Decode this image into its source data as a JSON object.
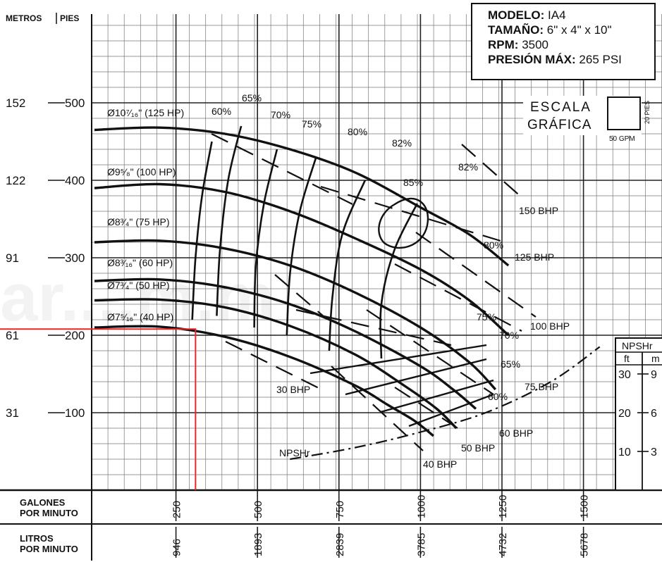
{
  "chart_data": {
    "type": "line",
    "title": "",
    "info": {
      "model_label": "MODELO:",
      "model": "IA4",
      "size_label": "TAMAÑO:",
      "size": "6\" x 4\" x 10\"",
      "rpm_label": "RPM:",
      "rpm": "3500",
      "pressure_label": "PRESIÓN MÁX:",
      "pressure": "265 PSI"
    },
    "y_axis": {
      "meters_label": "METROS",
      "feet_label": "PIES",
      "ticks": [
        {
          "feet": 100,
          "meters": "31",
          "label": "100"
        },
        {
          "feet": 200,
          "meters": "61",
          "label": "200"
        },
        {
          "feet": 300,
          "meters": "91",
          "label": "300"
        },
        {
          "feet": 400,
          "meters": "122",
          "label": "400"
        },
        {
          "feet": 500,
          "meters": "152",
          "label": "500"
        }
      ],
      "ylim": [
        0,
        600
      ]
    },
    "x_axis": {
      "gpm_label": [
        "GALONES",
        "POR MINUTO"
      ],
      "lpm_label": [
        "LITROS",
        "POR MINUTO"
      ],
      "ticks": [
        {
          "gpm": 250,
          "gpm_label": "250",
          "lpm": "946"
        },
        {
          "gpm": 500,
          "gpm_label": "500",
          "lpm": "1893"
        },
        {
          "gpm": 750,
          "gpm_label": "750",
          "lpm": "2839"
        },
        {
          "gpm": 1000,
          "gpm_label": "1000",
          "lpm": "3785"
        },
        {
          "gpm": 1250,
          "gpm_label": "1250",
          "lpm": "4732"
        },
        {
          "gpm": 1500,
          "gpm_label": "1500",
          "lpm": "5678"
        }
      ],
      "xlim": [
        0,
        1750
      ]
    },
    "scale_box": {
      "title": [
        "ESCALA",
        "GRÁFICA"
      ],
      "width_label": "50 GPM",
      "height_label": "20 PIES"
    },
    "npsh_axis": {
      "title": "NPSHr",
      "ft_label": "ft",
      "m_label": "m",
      "ticks": [
        {
          "ft": "10",
          "m": "3",
          "feet": 50
        },
        {
          "ft": "20",
          "m": "6",
          "feet": 100
        },
        {
          "ft": "30",
          "m": "9",
          "feet": 150
        }
      ]
    },
    "impeller_curves": [
      {
        "label": "Ø10⁷⁄₁₆\" (125 HP)",
        "points": [
          [
            0,
            465
          ],
          [
            200,
            468
          ],
          [
            400,
            460
          ],
          [
            600,
            440
          ],
          [
            800,
            410
          ],
          [
            1000,
            365
          ],
          [
            1150,
            330
          ],
          [
            1270,
            290
          ]
        ]
      },
      {
        "label": "Ø9⁵⁄₈\" (100 HP)",
        "points": [
          [
            0,
            390
          ],
          [
            200,
            395
          ],
          [
            400,
            385
          ],
          [
            600,
            360
          ],
          [
            800,
            325
          ],
          [
            1000,
            285
          ],
          [
            1150,
            245
          ],
          [
            1270,
            200
          ]
        ]
      },
      {
        "label": "Ø8³⁄₄\" (75 HP)",
        "points": [
          [
            0,
            320
          ],
          [
            200,
            322
          ],
          [
            400,
            312
          ],
          [
            600,
            290
          ],
          [
            800,
            255
          ],
          [
            1000,
            210
          ],
          [
            1150,
            165
          ],
          [
            1230,
            130
          ]
        ]
      },
      {
        "label": "Ø8³⁄₁₆\" (60 HP)",
        "points": [
          [
            0,
            270
          ],
          [
            200,
            272
          ],
          [
            400,
            262
          ],
          [
            600,
            240
          ],
          [
            800,
            205
          ],
          [
            1000,
            160
          ],
          [
            1100,
            130
          ],
          [
            1170,
            105
          ]
        ]
      },
      {
        "label": "Ø7³⁄₄\" (50 HP)",
        "points": [
          [
            0,
            245
          ],
          [
            200,
            246
          ],
          [
            400,
            236
          ],
          [
            600,
            212
          ],
          [
            800,
            175
          ],
          [
            950,
            135
          ],
          [
            1050,
            105
          ],
          [
            1110,
            80
          ]
        ]
      },
      {
        "label": "Ø7⁵⁄₁₆\" (40 HP)",
        "points": [
          [
            0,
            210
          ],
          [
            200,
            211
          ],
          [
            400,
            198
          ],
          [
            600,
            172
          ],
          [
            800,
            135
          ],
          [
            900,
            110
          ],
          [
            980,
            90
          ],
          [
            1040,
            70
          ]
        ]
      }
    ],
    "efficiency_contours": [
      {
        "label": "60%",
        "points": [
          [
            360,
            450
          ],
          [
            330,
            380
          ],
          [
            310,
            300
          ],
          [
            300,
            220
          ]
        ]
      },
      {
        "label": "65%",
        "points": [
          [
            450,
            470
          ],
          [
            410,
            400
          ],
          [
            385,
            310
          ],
          [
            375,
            225
          ]
        ]
      },
      {
        "label": "70%",
        "points": [
          [
            560,
            440
          ],
          [
            520,
            370
          ],
          [
            495,
            290
          ],
          [
            490,
            210
          ]
        ]
      },
      {
        "label": "75%",
        "points": [
          [
            680,
            430
          ],
          [
            630,
            360
          ],
          [
            600,
            280
          ],
          [
            590,
            200
          ]
        ]
      },
      {
        "label": "80%",
        "points": [
          [
            830,
            400
          ],
          [
            760,
            330
          ],
          [
            730,
            250
          ],
          [
            720,
            180
          ]
        ]
      },
      {
        "label": "82%",
        "points": [
          [
            990,
            370
          ],
          [
            920,
            310
          ],
          [
            880,
            240
          ],
          [
            880,
            170
          ]
        ]
      }
    ],
    "efficiency_85_label": "85%",
    "right_efficiency_labels": [
      "82%",
      "80%",
      "75%",
      "70%",
      "65%",
      "60%"
    ],
    "bhp_lines": [
      {
        "label": "150 BHP"
      },
      {
        "label": "125 BHP"
      },
      {
        "label": "100 BHP"
      },
      {
        "label": "75 BHP"
      },
      {
        "label": "60 BHP"
      },
      {
        "label": "50 BHP"
      },
      {
        "label": "40 BHP"
      },
      {
        "label": "30 BHP"
      }
    ],
    "npshr_curve": {
      "label": "NPSHr",
      "points": [
        [
          600,
          40
        ],
        [
          800,
          55
        ],
        [
          1000,
          75
        ],
        [
          1200,
          100
        ],
        [
          1400,
          140
        ],
        [
          1550,
          185
        ]
      ]
    },
    "operating_point": {
      "gpm": 310,
      "feet": 208,
      "color": "#e8272a"
    },
    "watermark": "ar....m.m",
    "grid": true
  }
}
